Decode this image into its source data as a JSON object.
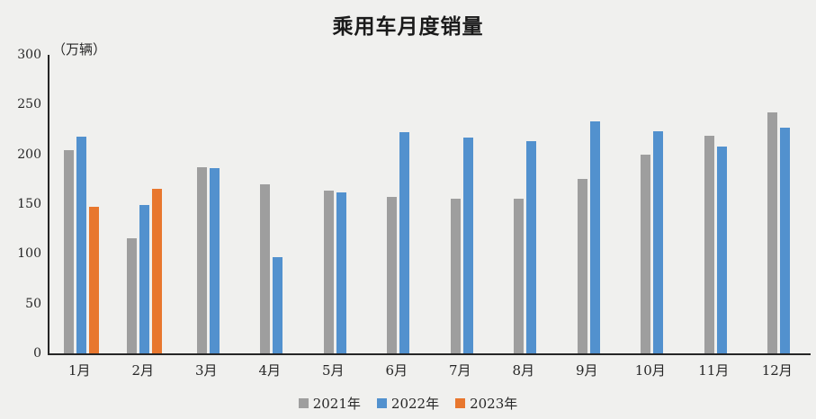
{
  "title": "乘用车月度销量",
  "unit_label": "（万辆）",
  "colors": {
    "background": "#f0f0ee",
    "axis": "#262626",
    "series_2021": "#9e9e9e",
    "series_2022": "#5291ce",
    "series_2023": "#e8772e"
  },
  "chart_data": {
    "type": "bar",
    "title": "乘用车月度销量",
    "ylabel": "（万辆）",
    "xlabel": "",
    "categories": [
      "1月",
      "2月",
      "3月",
      "4月",
      "5月",
      "6月",
      "7月",
      "8月",
      "9月",
      "10月",
      "11月",
      "12月"
    ],
    "series": [
      {
        "name": "2021年",
        "color": "#9e9e9e",
        "values": [
          204,
          116,
          187,
          170,
          164,
          157,
          155,
          155,
          175,
          200,
          219,
          242
        ]
      },
      {
        "name": "2022年",
        "color": "#5291ce",
        "values": [
          218,
          149,
          186,
          97,
          162,
          222,
          217,
          213,
          233,
          223,
          208,
          227
        ]
      },
      {
        "name": "2023年",
        "color": "#e8772e",
        "values": [
          147,
          165,
          null,
          null,
          null,
          null,
          null,
          null,
          null,
          null,
          null,
          null
        ]
      }
    ],
    "ylim": [
      0,
      300
    ],
    "yticks": [
      0,
      50,
      100,
      150,
      200,
      250,
      300
    ],
    "grid": false,
    "legend_position": "bottom"
  }
}
